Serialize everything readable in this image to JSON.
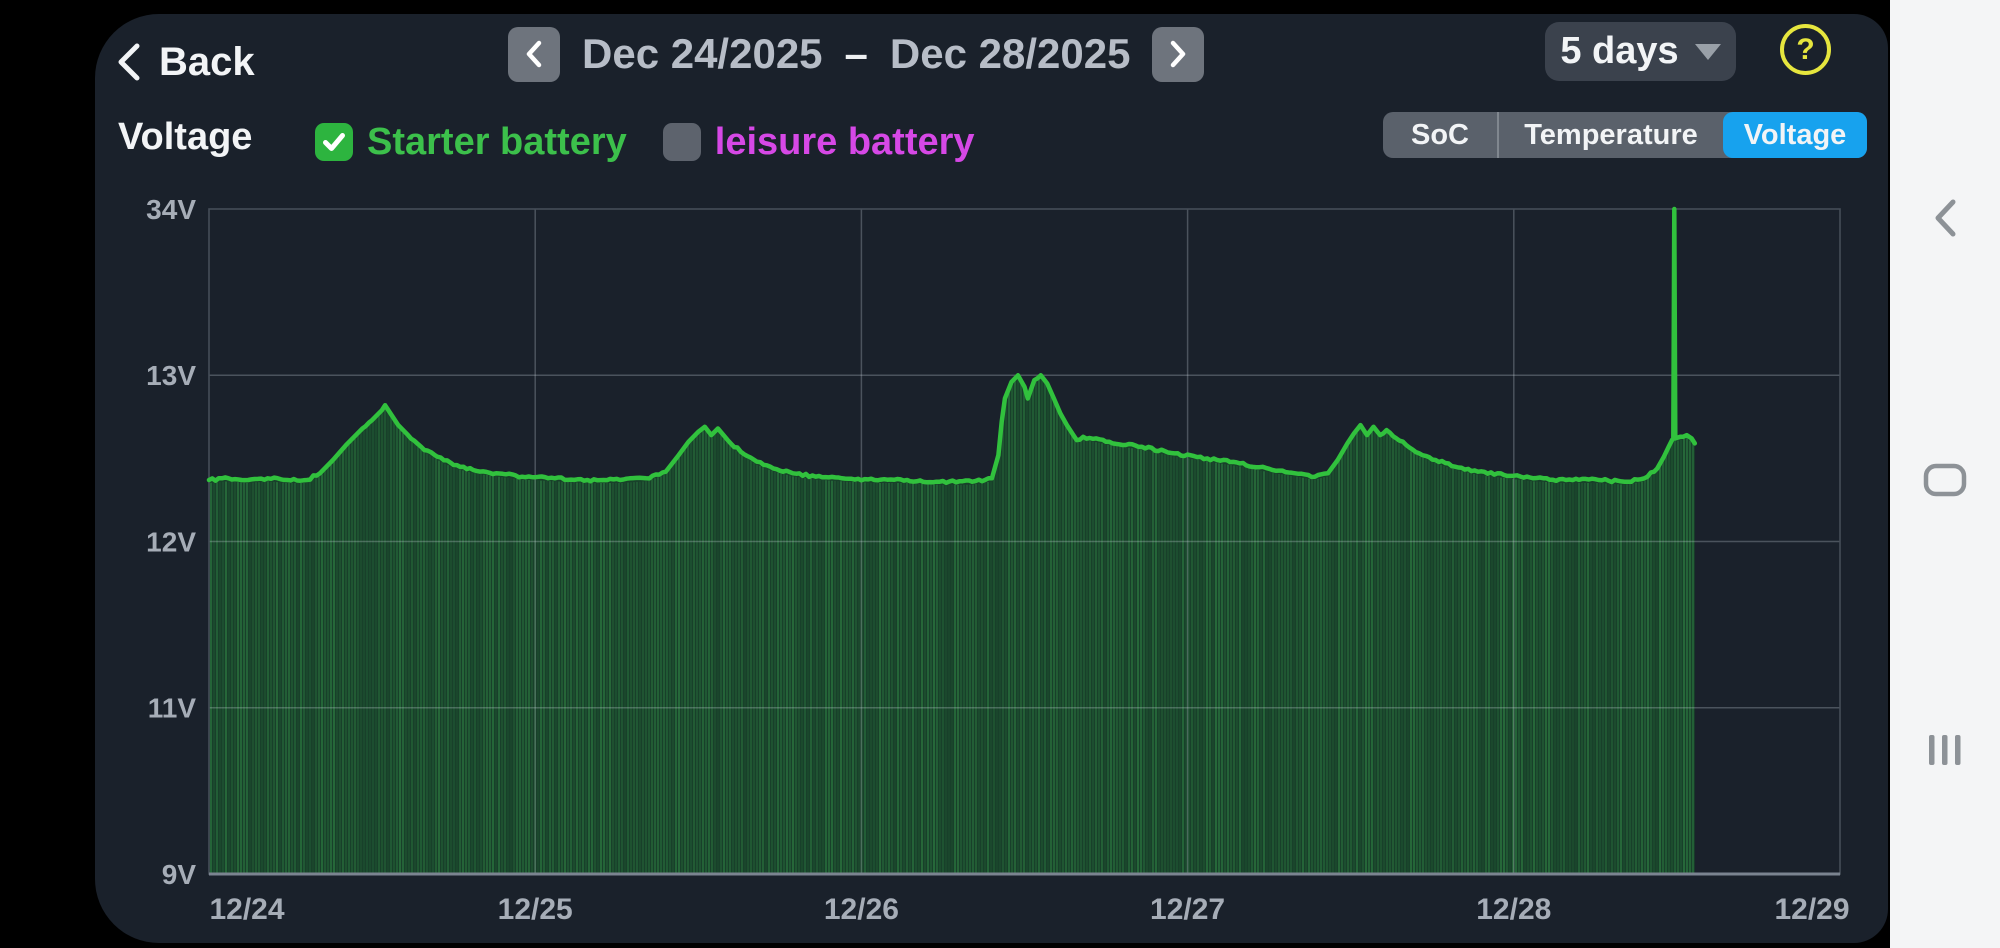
{
  "header": {
    "back_label": "Back",
    "date_start": "Dec 24/2025",
    "date_separator": "–",
    "date_end": "Dec 28/2025",
    "range_label": "5 days",
    "help_glyph": "?",
    "prev_icon": "chevron-left",
    "next_icon": "chevron-right"
  },
  "legend": {
    "title": "Voltage",
    "items": [
      {
        "label": "Starter battery",
        "checked": true,
        "color": "#3cc04b"
      },
      {
        "label": "leisure battery",
        "checked": false,
        "color": "#d648e6"
      }
    ]
  },
  "tabs": [
    {
      "label": "SoC",
      "active": false
    },
    {
      "label": "Temperature",
      "active": false
    },
    {
      "label": "Voltage",
      "active": true
    }
  ],
  "android_nav": {
    "icons": [
      "back",
      "home",
      "recents"
    ],
    "icon_color": "#8d9297"
  },
  "chart_data": {
    "type": "area",
    "title": "Voltage",
    "series_name": "Starter battery",
    "unit": "V",
    "x_ticks": [
      "12/24",
      "12/25",
      "12/26",
      "12/27",
      "12/28",
      "12/29"
    ],
    "x_range_days": [
      0,
      5
    ],
    "y_ticks": [
      {
        "value": 9,
        "label": "9V"
      },
      {
        "value": 11,
        "label": "11V"
      },
      {
        "value": 12,
        "label": "12V"
      },
      {
        "value": 13,
        "label": "13V"
      },
      {
        "value": 34,
        "label": "34V"
      }
    ],
    "y_scale_note": "non-linear axis: tick values 9,11,12,13,34 are evenly spaced",
    "grid": true,
    "colors": {
      "line": "#31c13d",
      "fill_base": "#18402a",
      "fill_stripe": "#3fae55",
      "grid": "rgba(205,214,224,0.28)",
      "border": "#454d58",
      "axis": "#7b8490"
    },
    "points": [
      [
        0.0,
        12.37
      ],
      [
        0.06,
        12.38
      ],
      [
        0.12,
        12.37
      ],
      [
        0.18,
        12.38
      ],
      [
        0.24,
        12.37
      ],
      [
        0.3,
        12.37
      ],
      [
        0.34,
        12.41
      ],
      [
        0.38,
        12.49
      ],
      [
        0.42,
        12.58
      ],
      [
        0.46,
        12.66
      ],
      [
        0.5,
        12.73
      ],
      [
        0.53,
        12.79
      ],
      [
        0.54,
        12.82
      ],
      [
        0.56,
        12.76
      ],
      [
        0.58,
        12.7
      ],
      [
        0.61,
        12.64
      ],
      [
        0.65,
        12.57
      ],
      [
        0.7,
        12.51
      ],
      [
        0.75,
        12.46
      ],
      [
        0.81,
        12.43
      ],
      [
        0.88,
        12.41
      ],
      [
        0.96,
        12.39
      ],
      [
        1.06,
        12.38
      ],
      [
        1.16,
        12.37
      ],
      [
        1.26,
        12.37
      ],
      [
        1.34,
        12.38
      ],
      [
        1.4,
        12.42
      ],
      [
        1.44,
        12.52
      ],
      [
        1.47,
        12.6
      ],
      [
        1.5,
        12.66
      ],
      [
        1.52,
        12.69
      ],
      [
        1.54,
        12.64
      ],
      [
        1.56,
        12.68
      ],
      [
        1.59,
        12.61
      ],
      [
        1.63,
        12.54
      ],
      [
        1.68,
        12.48
      ],
      [
        1.73,
        12.44
      ],
      [
        1.79,
        12.41
      ],
      [
        1.86,
        12.39
      ],
      [
        1.94,
        12.38
      ],
      [
        2.04,
        12.37
      ],
      [
        2.14,
        12.37
      ],
      [
        2.24,
        12.36
      ],
      [
        2.34,
        12.36
      ],
      [
        2.4,
        12.38
      ],
      [
        2.42,
        12.52
      ],
      [
        2.43,
        12.72
      ],
      [
        2.44,
        12.86
      ],
      [
        2.46,
        12.96
      ],
      [
        2.48,
        13.0
      ],
      [
        2.5,
        12.93
      ],
      [
        2.51,
        12.86
      ],
      [
        2.53,
        12.97
      ],
      [
        2.55,
        13.0
      ],
      [
        2.57,
        12.95
      ],
      [
        2.59,
        12.86
      ],
      [
        2.61,
        12.77
      ],
      [
        2.63,
        12.7
      ],
      [
        2.65,
        12.64
      ],
      [
        2.66,
        12.61
      ],
      [
        2.68,
        12.63
      ],
      [
        2.76,
        12.6
      ],
      [
        2.86,
        12.57
      ],
      [
        2.96,
        12.53
      ],
      [
        3.06,
        12.5
      ],
      [
        3.16,
        12.47
      ],
      [
        3.26,
        12.43
      ],
      [
        3.33,
        12.41
      ],
      [
        3.39,
        12.39
      ],
      [
        3.43,
        12.41
      ],
      [
        3.46,
        12.49
      ],
      [
        3.49,
        12.59
      ],
      [
        3.51,
        12.65
      ],
      [
        3.53,
        12.7
      ],
      [
        3.55,
        12.64
      ],
      [
        3.57,
        12.69
      ],
      [
        3.59,
        12.64
      ],
      [
        3.61,
        12.67
      ],
      [
        3.64,
        12.62
      ],
      [
        3.67,
        12.58
      ],
      [
        3.71,
        12.53
      ],
      [
        3.76,
        12.49
      ],
      [
        3.82,
        12.45
      ],
      [
        3.89,
        12.42
      ],
      [
        3.97,
        12.4
      ],
      [
        4.06,
        12.38
      ],
      [
        4.16,
        12.37
      ],
      [
        4.26,
        12.37
      ],
      [
        4.34,
        12.36
      ],
      [
        4.4,
        12.38
      ],
      [
        4.44,
        12.44
      ],
      [
        4.46,
        12.51
      ],
      [
        4.475,
        12.57
      ],
      [
        4.485,
        12.61
      ],
      [
        4.489,
        12.62
      ],
      [
        4.492,
        34
      ],
      [
        4.495,
        12.62
      ],
      [
        4.51,
        12.63
      ],
      [
        4.53,
        12.64
      ],
      [
        4.545,
        12.62
      ],
      [
        4.555,
        12.59
      ]
    ]
  }
}
